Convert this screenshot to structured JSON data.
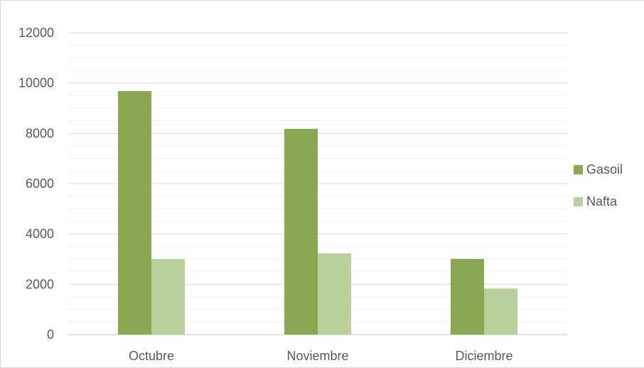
{
  "chart_data": {
    "type": "bar",
    "categories": [
      "Octubre",
      "Noviembre",
      "Diciembre"
    ],
    "series": [
      {
        "name": "Gasoil",
        "values": [
          9680,
          8180,
          3010
        ],
        "color": "#8aa752"
      },
      {
        "name": "Nafta",
        "values": [
          3000,
          3230,
          1830
        ],
        "color": "#b9d09a"
      }
    ],
    "title": "",
    "xlabel": "",
    "ylabel": "",
    "ylim": [
      0,
      12000
    ],
    "yticks": [
      "0",
      "2000",
      "4000",
      "6000",
      "8000",
      "10000",
      "12000"
    ],
    "grid": true,
    "minor_grid": true,
    "legend": "right"
  }
}
